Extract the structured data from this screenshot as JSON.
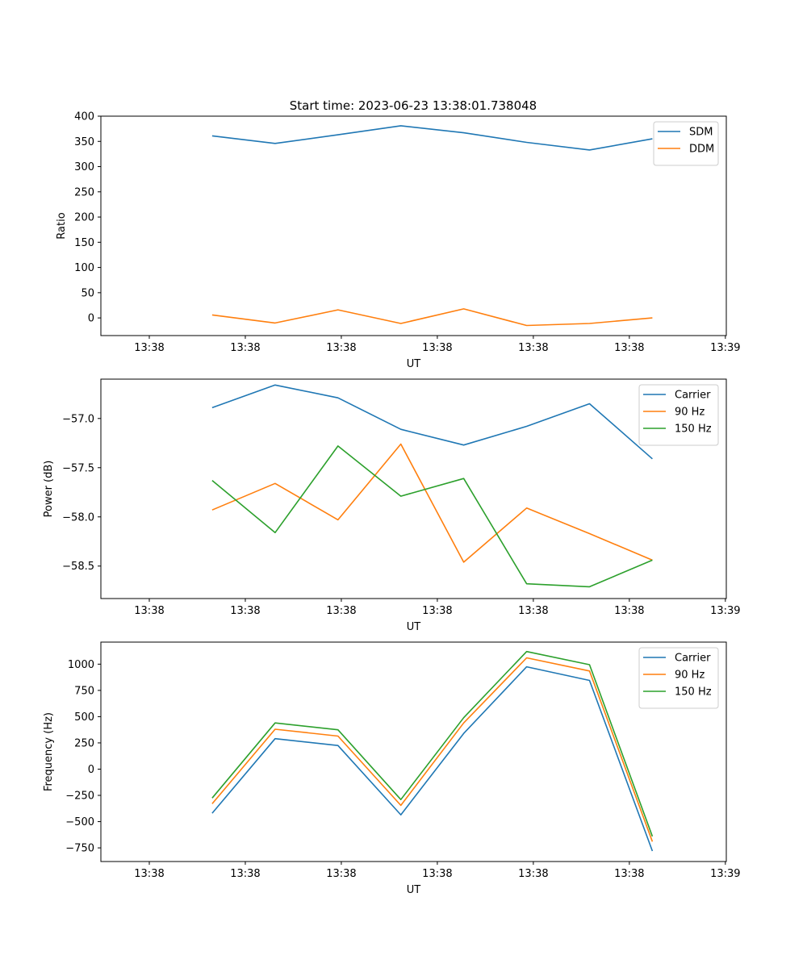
{
  "figure": {
    "title": "Start time: 2023-06-23 13:38:01.738048"
  },
  "chart_data": [
    {
      "type": "line",
      "xlabel": "UT",
      "ylabel": "Ratio",
      "x": [
        1,
        2,
        3,
        4,
        5,
        6,
        7,
        8
      ],
      "x_tick_positions": [
        0,
        1.5267,
        3.0533,
        4.58,
        6.1067,
        7.6333,
        9.16
      ],
      "x_tick_labels": [
        "13:38",
        "13:38",
        "13:38",
        "13:38",
        "13:38",
        "13:38",
        "13:39"
      ],
      "xlim": [
        -0.77,
        9.175
      ],
      "ylim": [
        -35,
        400
      ],
      "y_ticks": [
        0,
        50,
        100,
        150,
        200,
        250,
        300,
        350,
        400
      ],
      "y_tick_labels": [
        "0",
        "50",
        "100",
        "150",
        "200",
        "250",
        "300",
        "350",
        "400"
      ],
      "legend": "top-right",
      "grid": false,
      "series": [
        {
          "name": "SDM",
          "color": "#1f77b4",
          "values": [
            361,
            346,
            363,
            381,
            367,
            348,
            333,
            355
          ]
        },
        {
          "name": "DDM",
          "color": "#ff7f0e",
          "values": [
            6,
            -10,
            16,
            -11,
            18,
            -15,
            -11,
            0
          ]
        }
      ]
    },
    {
      "type": "line",
      "xlabel": "UT",
      "ylabel": "Power (dB)",
      "x": [
        1,
        2,
        3,
        4,
        5,
        6,
        7,
        8
      ],
      "x_tick_positions": [
        0,
        1.5267,
        3.0533,
        4.58,
        6.1067,
        7.6333,
        9.16
      ],
      "x_tick_labels": [
        "13:38",
        "13:38",
        "13:38",
        "13:38",
        "13:38",
        "13:38",
        "13:39"
      ],
      "xlim": [
        -0.77,
        9.175
      ],
      "ylim": [
        -58.83,
        -56.6
      ],
      "y_ticks": [
        -57.0,
        -57.5,
        -58.0,
        -58.5
      ],
      "y_tick_labels": [
        "−57.0",
        "−57.5",
        "−58.0",
        "−58.5"
      ],
      "legend": "top-right",
      "grid": false,
      "series": [
        {
          "name": "Carrier",
          "color": "#1f77b4",
          "values": [
            -56.89,
            -56.66,
            -56.79,
            -57.11,
            -57.27,
            -57.08,
            -56.85,
            -57.41
          ]
        },
        {
          "name": "90 Hz",
          "color": "#ff7f0e",
          "values": [
            -57.93,
            -57.66,
            -58.03,
            -57.26,
            -58.46,
            -57.91,
            -58.17,
            -58.44
          ]
        },
        {
          "name": "150 Hz",
          "color": "#2ca02c",
          "values": [
            -57.63,
            -58.16,
            -57.28,
            -57.79,
            -57.61,
            -58.68,
            -58.71,
            -58.44
          ]
        }
      ]
    },
    {
      "type": "line",
      "xlabel": "UT",
      "ylabel": "Frequency (Hz)",
      "x": [
        1,
        2,
        3,
        4,
        5,
        6,
        7,
        8
      ],
      "x_tick_positions": [
        0,
        1.5267,
        3.0533,
        4.58,
        6.1067,
        7.6333,
        9.16
      ],
      "x_tick_labels": [
        "13:38",
        "13:38",
        "13:38",
        "13:38",
        "13:38",
        "13:38",
        "13:39"
      ],
      "xlim": [
        -0.77,
        9.175
      ],
      "ylim": [
        -880,
        1210
      ],
      "y_ticks": [
        -750,
        -500,
        -250,
        0,
        250,
        500,
        750,
        1000
      ],
      "y_tick_labels": [
        "−750",
        "−500",
        "−250",
        "0",
        "250",
        "500",
        "750",
        "1000"
      ],
      "legend": "top-right",
      "grid": false,
      "series": [
        {
          "name": "Carrier",
          "color": "#1f77b4",
          "values": [
            -420,
            290,
            225,
            -435,
            340,
            975,
            845,
            -780
          ]
        },
        {
          "name": "90 Hz",
          "color": "#ff7f0e",
          "values": [
            -330,
            380,
            315,
            -345,
            440,
            1060,
            935,
            -690
          ]
        },
        {
          "name": "150 Hz",
          "color": "#2ca02c",
          "values": [
            -275,
            440,
            375,
            -290,
            490,
            1120,
            995,
            -640
          ]
        }
      ]
    }
  ]
}
